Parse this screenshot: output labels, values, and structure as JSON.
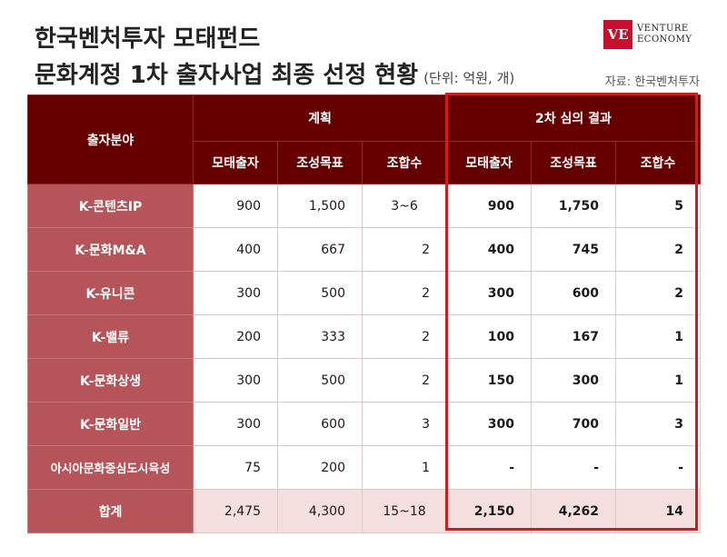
{
  "title": {
    "line1": "한국벤처투자 모태펀드",
    "line2": "문화계정 1차 출자사업 최종 선정 현황",
    "unit": "(단위: 억원, 개)"
  },
  "source": "자료: 한국벤처투자",
  "logo": {
    "mark": "VE",
    "line1": "VENTURE",
    "line2": "ECONOMY",
    "color": "#c8102e"
  },
  "table": {
    "header_field": "출자분야",
    "group_plan": "계획",
    "group_result": "2차 심의 결과",
    "col1": "모태출자",
    "col2": "조성목표",
    "col3": "조합수",
    "rows": [
      {
        "label": "K-콘텐츠IP",
        "p1": "900",
        "p2": "1,500",
        "p3": "3~6",
        "r1": "900",
        "r2": "1,750",
        "r3": "5"
      },
      {
        "label": "K-문화M&A",
        "p1": "400",
        "p2": "667",
        "p3": "2",
        "r1": "400",
        "r2": "745",
        "r3": "2"
      },
      {
        "label": "K-유니콘",
        "p1": "300",
        "p2": "500",
        "p3": "2",
        "r1": "300",
        "r2": "600",
        "r3": "2"
      },
      {
        "label": "K-밸류",
        "p1": "200",
        "p2": "333",
        "p3": "2",
        "r1": "100",
        "r2": "167",
        "r3": "1"
      },
      {
        "label": "K-문화상생",
        "p1": "300",
        "p2": "500",
        "p3": "2",
        "r1": "150",
        "r2": "300",
        "r3": "1"
      },
      {
        "label": "K-문화일반",
        "p1": "300",
        "p2": "600",
        "p3": "3",
        "r1": "300",
        "r2": "700",
        "r3": "3"
      },
      {
        "label": "아시아문화중심도시육성",
        "p1": "75",
        "p2": "200",
        "p3": "1",
        "r1": "-",
        "r2": "-",
        "r3": "-"
      }
    ],
    "total": {
      "label": "합계",
      "p1": "2,475",
      "p2": "4,300",
      "p3": "15~18",
      "r1": "2,150",
      "r2": "4,262",
      "r3": "14"
    }
  },
  "colors": {
    "header": "#660000",
    "row_label": "#b5555a",
    "highlight": "#d01c1c",
    "total_bg": "#f5dede"
  }
}
